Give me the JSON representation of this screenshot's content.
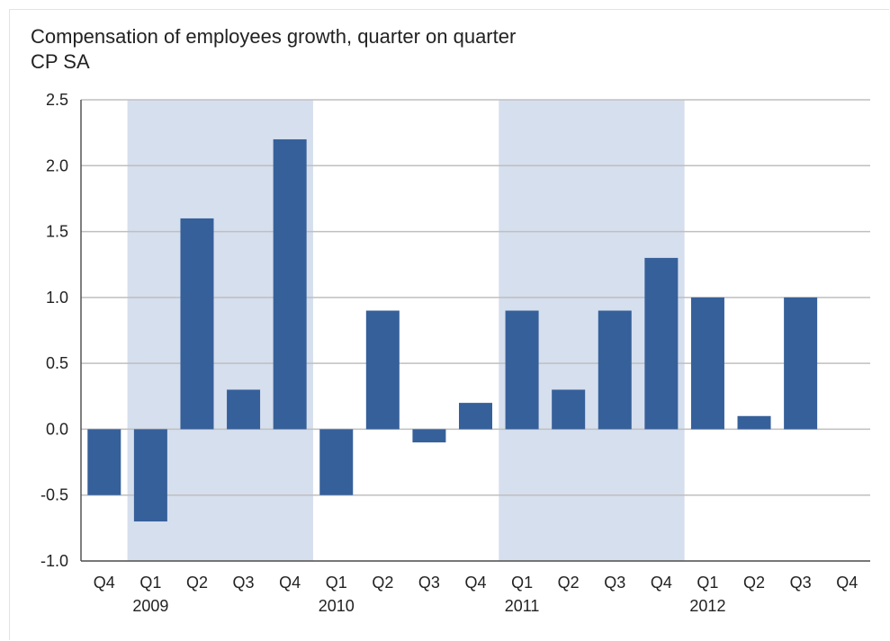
{
  "chart_data": {
    "type": "bar",
    "title": "Compensation of employees growth, quarter on quarter",
    "subtitle": "CP SA",
    "xlabel": "",
    "ylabel": "",
    "ylim": [
      -1.0,
      2.5
    ],
    "yticks": [
      "2.5",
      "2.0",
      "1.5",
      "1.0",
      "0.5",
      "0.0",
      "-0.5",
      "-1.0"
    ],
    "categories": [
      "Q4",
      "Q1",
      "Q2",
      "Q3",
      "Q4",
      "Q1",
      "Q2",
      "Q3",
      "Q4",
      "Q1",
      "Q2",
      "Q3",
      "Q4",
      "Q1",
      "Q2",
      "Q3",
      "Q4"
    ],
    "years": [
      {
        "label": "2009",
        "index": 1
      },
      {
        "label": "2010",
        "index": 5
      },
      {
        "label": "2011",
        "index": 9
      },
      {
        "label": "2012",
        "index": 13
      }
    ],
    "values": [
      -0.5,
      -0.7,
      1.6,
      0.3,
      2.2,
      -0.5,
      0.9,
      -0.1,
      0.2,
      0.9,
      0.3,
      0.9,
      1.3,
      1.0,
      0.1,
      1.0,
      null
    ],
    "shaded_ranges": [
      [
        1,
        4
      ],
      [
        9,
        12
      ]
    ],
    "grid": true,
    "colors": {
      "bar": "#36609a",
      "shade": "#d6dfee",
      "grid": "#bfbfbf",
      "axis": "#555555"
    }
  }
}
